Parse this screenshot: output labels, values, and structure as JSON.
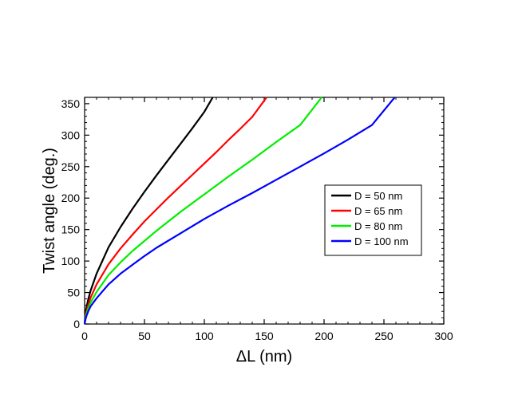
{
  "chart_data": {
    "type": "line",
    "xlabel": "ΔL (nm)",
    "ylabel": "Twist angle (deg.)",
    "xlim": [
      0,
      300
    ],
    "ylim": [
      0,
      360
    ],
    "x_ticks": [
      0,
      50,
      100,
      150,
      200,
      250,
      300
    ],
    "y_ticks": [
      0,
      50,
      100,
      150,
      200,
      250,
      300,
      350
    ],
    "grid": false,
    "legend_position": "center-right",
    "series": [
      {
        "name": "D = 50 nm",
        "color": "#000000",
        "x": [
          0,
          1,
          3,
          5,
          10,
          20,
          30,
          40,
          50,
          60,
          70,
          80,
          90,
          100,
          107
        ],
        "y": [
          0,
          21,
          39,
          53,
          80,
          122,
          154,
          183,
          210,
          236,
          261,
          286,
          311,
          337,
          360
        ]
      },
      {
        "name": "D = 65 nm",
        "color": "#ff0000",
        "x": [
          0,
          1,
          3,
          5,
          10,
          20,
          30,
          40,
          50,
          60,
          70,
          80,
          90,
          100,
          110,
          120,
          130,
          140,
          152
        ],
        "y": [
          0,
          16,
          30,
          42,
          63,
          95,
          120,
          142,
          163,
          182,
          201,
          219,
          237,
          255,
          273,
          292,
          310,
          329,
          360
        ]
      },
      {
        "name": "D = 80 nm",
        "color": "#00ee00",
        "x": [
          0,
          1,
          3,
          5,
          10,
          20,
          30,
          40,
          50,
          60,
          70,
          80,
          90,
          100,
          120,
          140,
          160,
          180,
          198
        ],
        "y": [
          0,
          13,
          25,
          34,
          51,
          78,
          98,
          116,
          132,
          148,
          163,
          178,
          192,
          206,
          234,
          261,
          289,
          316,
          360
        ]
      },
      {
        "name": "D = 100 nm",
        "color": "#0000ff",
        "x": [
          0,
          1,
          3,
          5,
          10,
          20,
          30,
          40,
          50,
          60,
          80,
          100,
          120,
          140,
          160,
          180,
          200,
          220,
          240,
          259
        ],
        "y": [
          0,
          10,
          20,
          28,
          41,
          63,
          80,
          94,
          108,
          121,
          144,
          167,
          188,
          208,
          229,
          250,
          271,
          293,
          316,
          360
        ]
      }
    ]
  }
}
